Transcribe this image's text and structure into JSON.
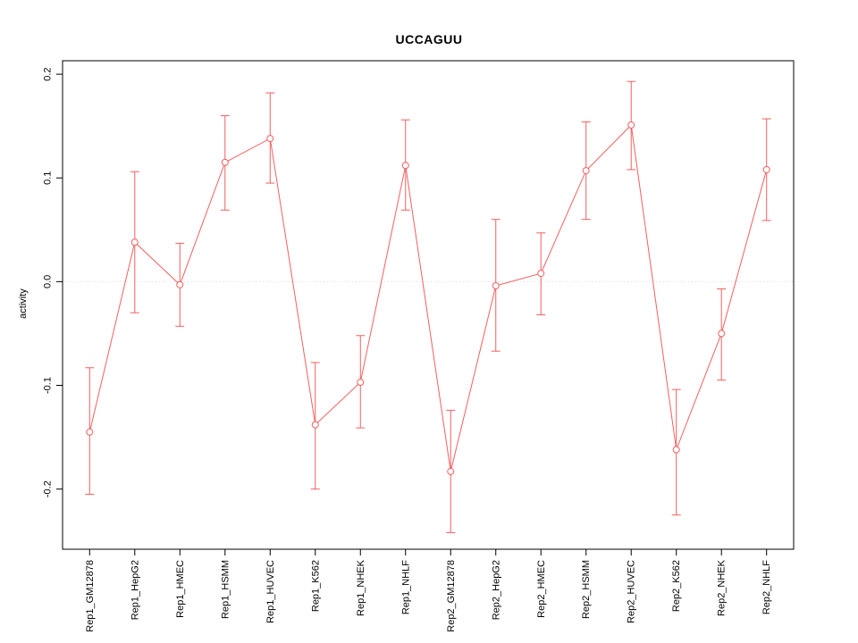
{
  "chart_data": {
    "type": "line",
    "title": "UCCAGUU",
    "xlabel": "",
    "ylabel": "activity",
    "categories": [
      "Rep1_GM12878",
      "Rep1_HepG2",
      "Rep1_HMEC",
      "Rep1_HSMM",
      "Rep1_HUVEC",
      "Rep1_K562",
      "Rep1_NHEK",
      "Rep1_NHLF",
      "Rep2_GM12878",
      "Rep2_HepG2",
      "Rep2_HMEC",
      "Rep2_HSMM",
      "Rep2_HUVEC",
      "Rep2_K562",
      "Rep2_NHEK",
      "Rep2_NHLF"
    ],
    "series": [
      {
        "name": "activity",
        "values": [
          -0.145,
          0.038,
          -0.003,
          0.115,
          0.138,
          -0.138,
          -0.097,
          0.112,
          -0.183,
          -0.004,
          0.008,
          0.107,
          0.151,
          -0.162,
          -0.05,
          0.108
        ],
        "error_low": [
          -0.205,
          -0.03,
          -0.043,
          0.069,
          0.095,
          -0.2,
          -0.141,
          0.069,
          -0.242,
          -0.067,
          -0.032,
          0.06,
          0.108,
          -0.225,
          -0.095,
          0.059
        ],
        "error_high": [
          -0.083,
          0.106,
          0.037,
          0.16,
          0.182,
          -0.078,
          -0.052,
          0.156,
          -0.124,
          0.06,
          0.047,
          0.154,
          0.193,
          -0.104,
          -0.007,
          0.157
        ]
      }
    ],
    "yticks": [
      -0.2,
      -0.1,
      0.0,
      0.1,
      0.2
    ],
    "ylim": [
      -0.258,
      0.213
    ],
    "grid": "dotted horizontal line at y=0 only",
    "legend": "none",
    "line_color": "#f25f5f",
    "gridline_color": "#d8d8d8",
    "axis_color": "#000000",
    "point_style": "open-circle",
    "background": "#ffffff"
  }
}
